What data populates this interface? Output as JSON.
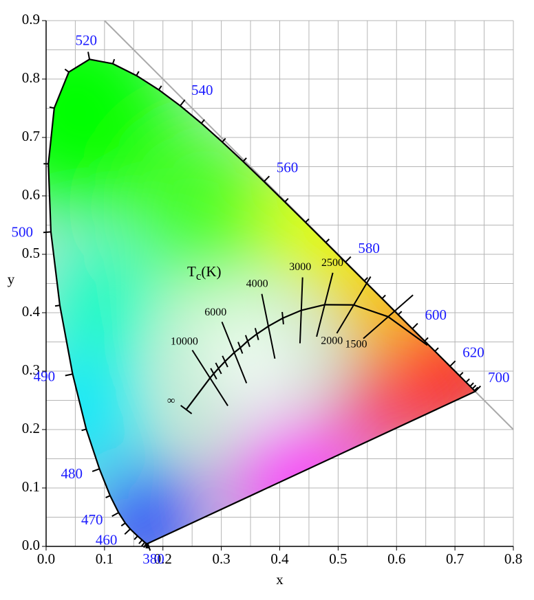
{
  "chart_data": {
    "type": "chromaticity",
    "xlabel": "x",
    "ylabel": "y",
    "xlim": [
      0,
      0.8
    ],
    "ylim": [
      0,
      0.9
    ],
    "xticks": [
      {
        "value": 0,
        "label": "0.0"
      },
      0.1,
      0.2,
      0.3,
      0.4,
      0.5,
      0.6,
      0.7,
      0.8
    ],
    "yticks": [
      {
        "value": 0,
        "label": "0.0"
      },
      0.1,
      0.2,
      0.3,
      0.4,
      0.5,
      0.6,
      0.7,
      0.8,
      0.9
    ],
    "minor_xgrid": [
      0.05,
      0.15,
      0.25,
      0.35,
      0.45,
      0.55,
      0.65,
      0.75
    ],
    "minor_ygrid": [
      0.05,
      0.15,
      0.25,
      0.35,
      0.45,
      0.55,
      0.65,
      0.75,
      0.85
    ],
    "grid": true,
    "label_color": "#1a1aff",
    "spectral_locus": [
      {
        "wavelength": 380,
        "x": 0.1741,
        "y": 0.005,
        "labeled": true
      },
      {
        "wavelength": 390,
        "x": 0.1738,
        "y": 0.0049,
        "labeled": false
      },
      {
        "wavelength": 400,
        "x": 0.1733,
        "y": 0.0048,
        "labeled": false
      },
      {
        "wavelength": 410,
        "x": 0.1726,
        "y": 0.0048,
        "labeled": false
      },
      {
        "wavelength": 420,
        "x": 0.1714,
        "y": 0.0051,
        "labeled": false
      },
      {
        "wavelength": 430,
        "x": 0.1689,
        "y": 0.0069,
        "labeled": false
      },
      {
        "wavelength": 440,
        "x": 0.1644,
        "y": 0.0109,
        "labeled": false
      },
      {
        "wavelength": 450,
        "x": 0.1566,
        "y": 0.0177,
        "labeled": false
      },
      {
        "wavelength": 460,
        "x": 0.144,
        "y": 0.0297,
        "labeled": true
      },
      {
        "wavelength": 465,
        "x": 0.1355,
        "y": 0.0399,
        "labeled": false
      },
      {
        "wavelength": 470,
        "x": 0.1241,
        "y": 0.0578,
        "labeled": true
      },
      {
        "wavelength": 475,
        "x": 0.1096,
        "y": 0.0868,
        "labeled": false
      },
      {
        "wavelength": 480,
        "x": 0.0913,
        "y": 0.1327,
        "labeled": true
      },
      {
        "wavelength": 485,
        "x": 0.0687,
        "y": 0.2007,
        "labeled": false
      },
      {
        "wavelength": 490,
        "x": 0.0454,
        "y": 0.295,
        "labeled": true
      },
      {
        "wavelength": 495,
        "x": 0.0235,
        "y": 0.4127,
        "labeled": false
      },
      {
        "wavelength": 500,
        "x": 0.0082,
        "y": 0.5384,
        "labeled": true
      },
      {
        "wavelength": 505,
        "x": 0.0039,
        "y": 0.6548,
        "labeled": false
      },
      {
        "wavelength": 510,
        "x": 0.0139,
        "y": 0.7502,
        "labeled": false
      },
      {
        "wavelength": 515,
        "x": 0.0389,
        "y": 0.812,
        "labeled": false
      },
      {
        "wavelength": 520,
        "x": 0.0743,
        "y": 0.8338,
        "labeled": true
      },
      {
        "wavelength": 525,
        "x": 0.1142,
        "y": 0.8262,
        "labeled": false
      },
      {
        "wavelength": 530,
        "x": 0.1547,
        "y": 0.8059,
        "labeled": false
      },
      {
        "wavelength": 535,
        "x": 0.1929,
        "y": 0.7816,
        "labeled": false
      },
      {
        "wavelength": 540,
        "x": 0.2296,
        "y": 0.7543,
        "labeled": true
      },
      {
        "wavelength": 545,
        "x": 0.2658,
        "y": 0.7243,
        "labeled": false
      },
      {
        "wavelength": 550,
        "x": 0.3016,
        "y": 0.6923,
        "labeled": false
      },
      {
        "wavelength": 555,
        "x": 0.3373,
        "y": 0.6589,
        "labeled": false
      },
      {
        "wavelength": 560,
        "x": 0.3731,
        "y": 0.6245,
        "labeled": true
      },
      {
        "wavelength": 565,
        "x": 0.4087,
        "y": 0.5896,
        "labeled": false
      },
      {
        "wavelength": 570,
        "x": 0.4441,
        "y": 0.5547,
        "labeled": false
      },
      {
        "wavelength": 575,
        "x": 0.4788,
        "y": 0.5202,
        "labeled": false
      },
      {
        "wavelength": 580,
        "x": 0.5125,
        "y": 0.4866,
        "labeled": true
      },
      {
        "wavelength": 585,
        "x": 0.5448,
        "y": 0.4544,
        "labeled": false
      },
      {
        "wavelength": 590,
        "x": 0.5752,
        "y": 0.4242,
        "labeled": false
      },
      {
        "wavelength": 595,
        "x": 0.6029,
        "y": 0.3965,
        "labeled": false
      },
      {
        "wavelength": 600,
        "x": 0.627,
        "y": 0.3725,
        "labeled": true
      },
      {
        "wavelength": 605,
        "x": 0.6482,
        "y": 0.3514,
        "labeled": false
      },
      {
        "wavelength": 610,
        "x": 0.6658,
        "y": 0.334,
        "labeled": false
      },
      {
        "wavelength": 620,
        "x": 0.6915,
        "y": 0.3083,
        "labeled": true
      },
      {
        "wavelength": 630,
        "x": 0.7079,
        "y": 0.292,
        "labeled": false
      },
      {
        "wavelength": 640,
        "x": 0.719,
        "y": 0.2809,
        "labeled": false
      },
      {
        "wavelength": 650,
        "x": 0.726,
        "y": 0.274,
        "labeled": false
      },
      {
        "wavelength": 660,
        "x": 0.73,
        "y": 0.27,
        "labeled": false
      },
      {
        "wavelength": 680,
        "x": 0.7334,
        "y": 0.2666,
        "labeled": false
      },
      {
        "wavelength": 700,
        "x": 0.7347,
        "y": 0.2653,
        "labeled": true
      }
    ],
    "planckian_locus": {
      "label": {
        "symbol": "T",
        "subscript": "c",
        "unit": "(K)"
      },
      "points": [
        {
          "temperature": 1000,
          "x": 0.6528,
          "y": 0.3444,
          "labeled": false
        },
        {
          "temperature": 1500,
          "x": 0.5857,
          "y": 0.3931,
          "labeled": true
        },
        {
          "temperature": 2000,
          "x": 0.5267,
          "y": 0.4133,
          "labeled": true
        },
        {
          "temperature": 2500,
          "x": 0.477,
          "y": 0.4137,
          "labeled": true
        },
        {
          "temperature": 3000,
          "x": 0.4369,
          "y": 0.4041,
          "labeled": true
        },
        {
          "temperature": 3500,
          "x": 0.4053,
          "y": 0.3907,
          "labeled": false
        },
        {
          "temperature": 4000,
          "x": 0.3805,
          "y": 0.3768,
          "labeled": true
        },
        {
          "temperature": 4500,
          "x": 0.3608,
          "y": 0.3635,
          "labeled": false
        },
        {
          "temperature": 5000,
          "x": 0.3451,
          "y": 0.3516,
          "labeled": false
        },
        {
          "temperature": 5500,
          "x": 0.3325,
          "y": 0.34,
          "labeled": false
        },
        {
          "temperature": 6000,
          "x": 0.3221,
          "y": 0.3318,
          "labeled": true
        },
        {
          "temperature": 7000,
          "x": 0.3064,
          "y": 0.3166,
          "labeled": false
        },
        {
          "temperature": 8000,
          "x": 0.2952,
          "y": 0.3048,
          "labeled": false
        },
        {
          "temperature": 9000,
          "x": 0.2869,
          "y": 0.2956,
          "labeled": false
        },
        {
          "temperature": 10000,
          "x": 0.2807,
          "y": 0.2883,
          "labeled": true
        },
        {
          "label": "∞",
          "x": 0.2399,
          "y": 0.2342
        }
      ]
    }
  }
}
